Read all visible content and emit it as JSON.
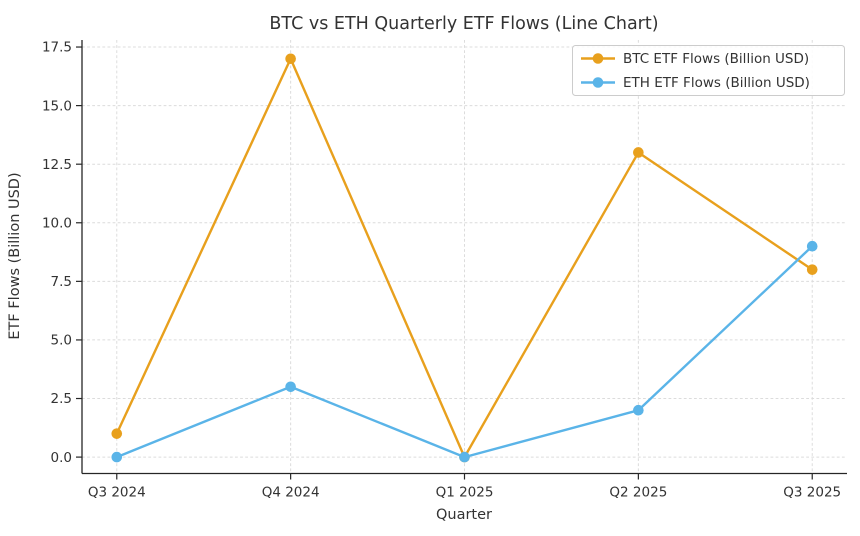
{
  "figure": {
    "background": "#ffffff"
  },
  "chart_data": {
    "type": "line",
    "title": "BTC vs ETH Quarterly ETF Flows (Line Chart)",
    "xlabel": "Quarter",
    "ylabel": "ETF Flows (Billion USD)",
    "categories": [
      "Q3 2024",
      "Q4 2024",
      "Q1 2025",
      "Q2 2025",
      "Q3 2025"
    ],
    "series": [
      {
        "name": "BTC ETF Flows (Billion USD)",
        "color": "#E8A01D",
        "marker": "circle",
        "values": [
          1,
          17,
          0,
          13,
          8
        ]
      },
      {
        "name": "ETH ETF Flows (Billion USD)",
        "color": "#5AB4E8",
        "marker": "circle",
        "values": [
          0,
          3,
          0,
          2,
          9
        ]
      }
    ],
    "y_ticks": [
      0.0,
      2.5,
      5.0,
      7.5,
      10.0,
      12.5,
      15.0,
      17.5
    ],
    "y_tick_labels": [
      "0.0",
      "2.5",
      "5.0",
      "7.5",
      "10.0",
      "12.5",
      "15.0",
      "17.5"
    ],
    "ylim": [
      -0.7,
      17.8
    ],
    "grid": true,
    "grid_style": "dashed",
    "grid_color": "#dcdcdc",
    "axis_color": "#262626",
    "text_color": "#333333",
    "legend_position": "upper right",
    "legend_border_color": "#cccccc"
  }
}
